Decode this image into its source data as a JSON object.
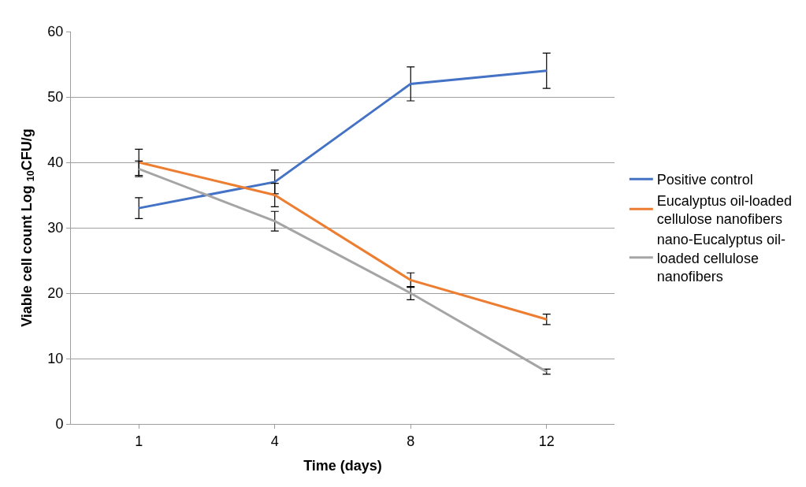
{
  "chart_data": {
    "type": "line",
    "xlabel": "Time (days)",
    "ylabel": "Viable cell count Log $_{10}$CFU/g",
    "categories": [
      "1",
      "4",
      "8",
      "12"
    ],
    "series": [
      {
        "name": "Positive control",
        "color": "#4472c4",
        "values": [
          33,
          37,
          52,
          54
        ],
        "errors": [
          1.6,
          1.8,
          2.6,
          2.7
        ]
      },
      {
        "name": "Eucalyptus oil-loaded cellulose nanofibers",
        "color": "#ed7d31",
        "values": [
          40,
          35,
          22,
          16
        ],
        "errors": [
          2,
          1.8,
          1.1,
          0.8
        ]
      },
      {
        "name": "nano-Eucalyptus oil-loaded cellulose nanofibers",
        "color": "#a5a5a5",
        "values": [
          39,
          31,
          20,
          8
        ],
        "errors": [
          1.2,
          1.5,
          1,
          0.4
        ]
      }
    ],
    "ylim": [
      0,
      60
    ],
    "yticks": [
      0,
      10,
      20,
      30,
      40,
      50,
      60
    ],
    "grid": "y",
    "legend": "right",
    "line_style": "solid"
  }
}
